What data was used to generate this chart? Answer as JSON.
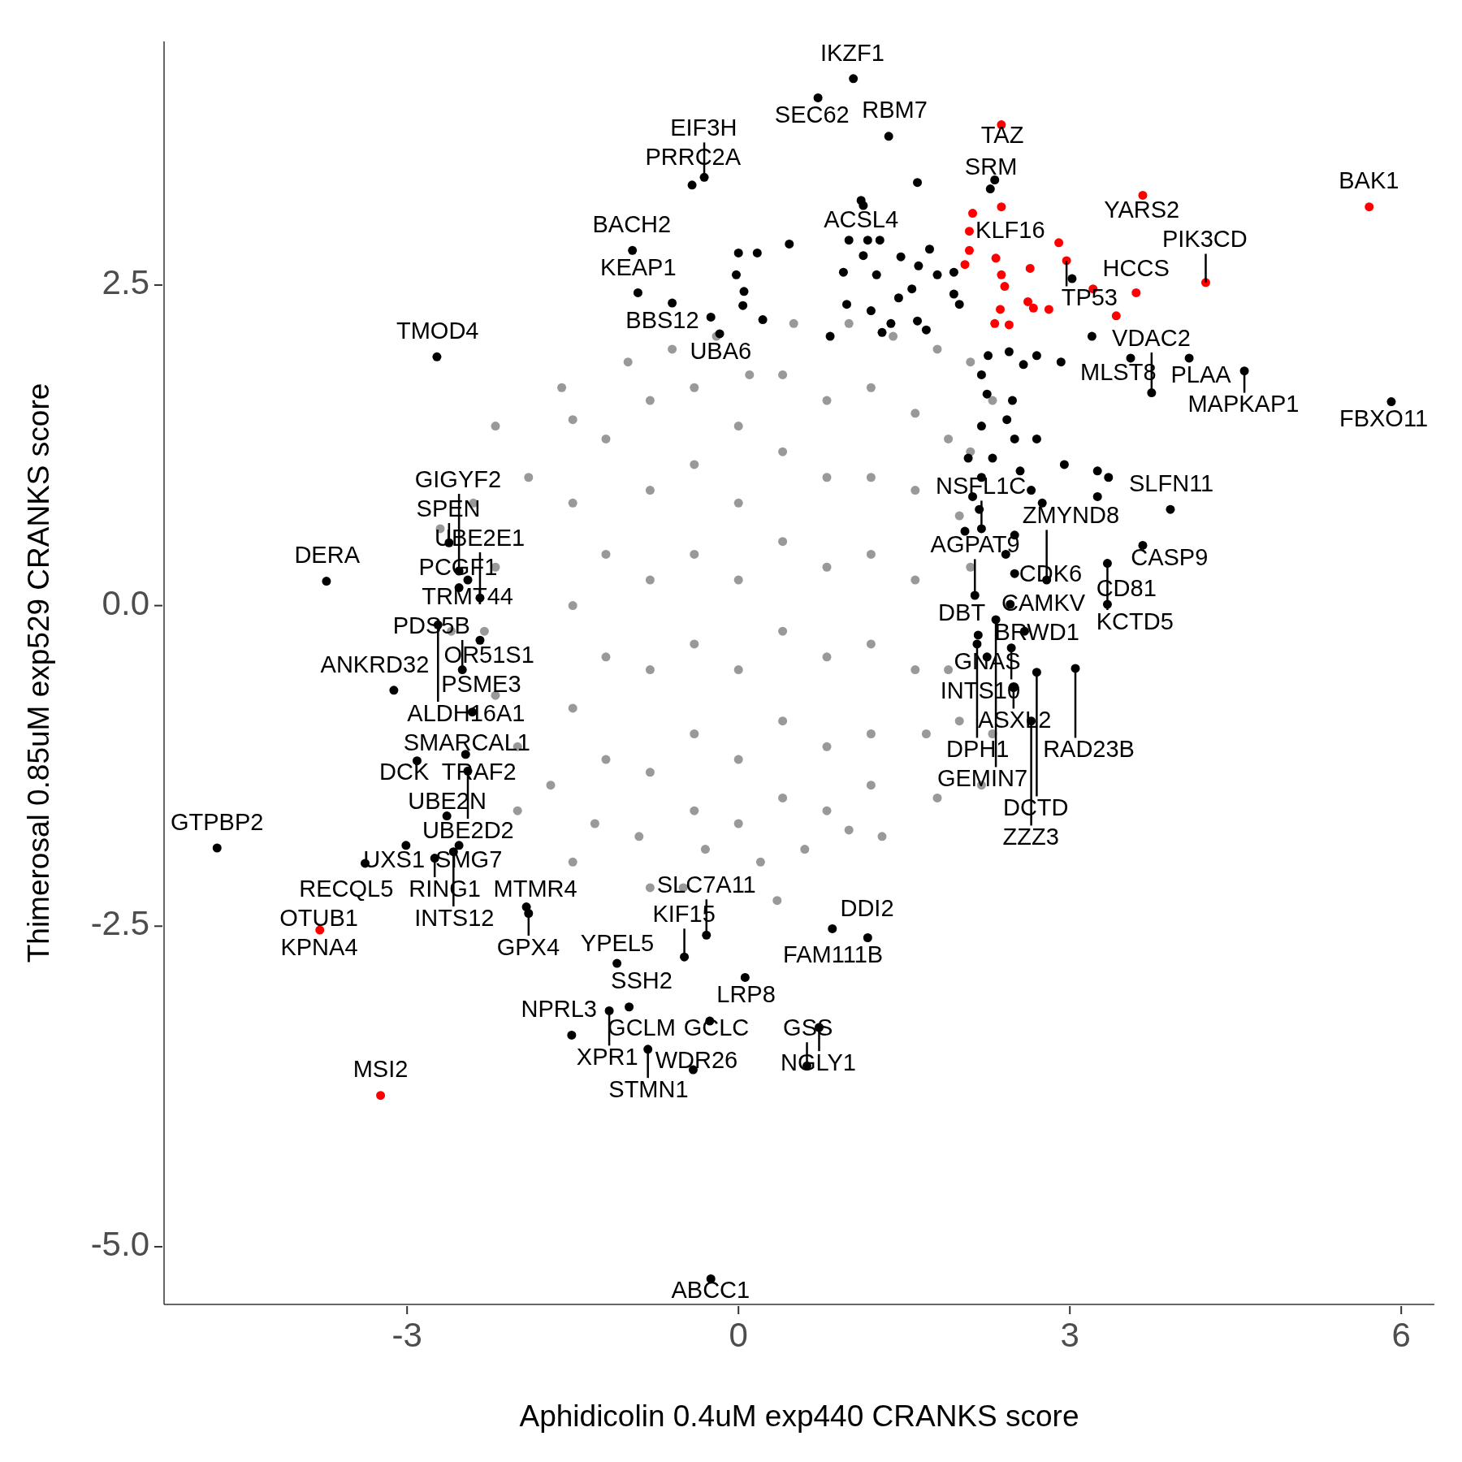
{
  "chart_data": {
    "type": "scatter",
    "xlabel": "Aphidicolin 0.4uM exp440 CRANKS score",
    "ylabel": "Thimerosal 0.85uM exp529 CRANKS score",
    "xlim": [
      -5.2,
      6.3
    ],
    "ylim": [
      -5.45,
      4.4
    ],
    "xticks": [
      -3,
      0,
      3,
      6
    ],
    "yticks": [
      {
        "value": 2.5,
        "label": "2.5"
      },
      {
        "value": 0,
        "label": "0.0"
      },
      {
        "value": -2.5,
        "label": "-2.5"
      },
      {
        "value": -5,
        "label": "-5.0"
      }
    ],
    "marker": "circle",
    "series": [
      {
        "color": "#999999",
        "x": [
          -2.2,
          -1.6,
          -1.5,
          -1.0,
          -0.6,
          -0.2,
          0.5,
          1.0,
          1.4,
          1.8,
          2.1,
          2.3,
          2.1,
          2.0,
          2.1,
          1.9,
          1.7,
          1.2,
          1.0,
          0.6,
          0.2,
          -0.3,
          -0.5,
          -0.9,
          -1.3,
          -1.7,
          -2.0,
          -2.2,
          -2.3,
          -2.2,
          -2.4,
          -1.9,
          -2.0,
          -1.5,
          1.3,
          2.2,
          -0.8,
          0.35,
          -2.6,
          -2.7,
          0.1,
          -1.5,
          -1.5,
          -1.5,
          -1.2,
          -1.2,
          -1.2,
          -1.2,
          -0.8,
          -0.8,
          -0.8,
          -0.8,
          -0.8,
          -0.4,
          -0.4,
          -0.4,
          -0.4,
          -0.4,
          -0.4,
          0,
          0,
          0,
          0,
          0,
          0,
          0.4,
          0.4,
          0.4,
          0.4,
          0.4,
          0.4,
          0.8,
          0.8,
          0.8,
          0.8,
          0.8,
          0.8,
          1.2,
          1.2,
          1.2,
          1.2,
          1.2,
          1.6,
          1.6,
          1.6,
          1.6,
          1.9,
          2.0,
          2.3,
          1.8
        ],
        "values": [
          1.4,
          1.7,
          1.45,
          1.9,
          2.0,
          2.1,
          2.2,
          2.2,
          2.1,
          2.0,
          1.9,
          1.6,
          1.2,
          0.7,
          0.3,
          -0.5,
          -1.0,
          -1.4,
          -1.75,
          -1.9,
          -2.0,
          -1.9,
          -2.2,
          -1.8,
          -1.7,
          -1.4,
          -1.1,
          -0.7,
          -0.2,
          0.3,
          0.8,
          1.0,
          -1.6,
          -2.0,
          -1.8,
          -1.4,
          -2.2,
          -2.3,
          -0.2,
          0.6,
          1.8,
          0.8,
          0,
          -0.8,
          1.3,
          0.4,
          -0.4,
          -1.2,
          1.6,
          0.9,
          0.2,
          -0.5,
          -1.3,
          1.7,
          1.1,
          0.4,
          -0.3,
          -1.0,
          -1.6,
          1.4,
          0.8,
          0.2,
          -0.5,
          -1.2,
          -1.7,
          1.8,
          1.2,
          0.5,
          -0.2,
          -0.9,
          -1.5,
          1.6,
          1.0,
          0.3,
          -0.4,
          -1.1,
          -1.6,
          1.7,
          1.0,
          0.4,
          -0.3,
          -1.0,
          1.5,
          0.9,
          0.2,
          -0.5,
          1.3,
          -0.9,
          -1.0,
          -1.5
        ]
      },
      {
        "color": "#000000",
        "x": [
          1.04,
          0.72,
          1.36,
          -0.42,
          -0.31,
          1.11,
          1.13,
          2.28,
          -0.96,
          -0.91,
          -0.6,
          3.55,
          4.08,
          -2.73,
          4.58,
          3.74,
          5.91,
          3.91,
          -2.62,
          2.79,
          -2.45,
          2.14,
          2.5,
          3.66,
          3.34,
          -3.73,
          -2.53,
          -2.34,
          2.46,
          3.34,
          2.33,
          2.17,
          -2.72,
          -2.5,
          -2.34,
          2.59,
          2.16,
          -3.12,
          -2.41,
          3.05,
          2.7,
          2.49,
          2.47,
          -2.91,
          -2.47,
          -2.45,
          2.65,
          -2.64,
          -4.72,
          -3.01,
          -2.53,
          -3.38,
          -0.49,
          -2.75,
          -1.92,
          -0.29,
          0.85,
          -1.9,
          -1.1,
          0.06,
          1.17,
          -1.17,
          -0.99,
          0.73,
          -1.51,
          -0.26,
          0.62,
          -0.82,
          -0.41,
          -0.25,
          0,
          0.17,
          -0.02,
          0.05,
          0.04,
          0.46,
          0.22,
          -0.25,
          -0.17,
          1.0,
          1.17,
          1.28,
          0.95,
          1.13,
          1.25,
          1.47,
          1.73,
          1.63,
          1.8,
          1.95,
          0.98,
          1.2,
          1.45,
          1.57,
          1.62,
          1.7,
          1.3,
          1.38,
          0.83,
          1.95,
          2.0,
          1.62,
          2.32,
          2.26,
          2.45,
          2.7,
          2.92,
          2.58,
          2.2,
          2.25,
          2.2,
          2.48,
          2.43,
          2.5,
          2.08,
          2.2,
          2.3,
          2.7,
          2.55,
          2.95,
          3.25,
          3.35,
          2.65,
          2.75,
          3.25,
          2.12,
          2.18,
          2.2,
          2.5,
          2.42,
          2.05,
          3.02,
          3.2,
          -2.53,
          2.25,
          -2.58
        ],
        "values": [
          4.11,
          3.96,
          3.66,
          3.28,
          3.34,
          3.16,
          3.12,
          3.25,
          2.77,
          2.44,
          2.36,
          1.93,
          1.93,
          1.94,
          1.83,
          1.66,
          1.59,
          0.75,
          0.49,
          0.2,
          0.2,
          0.08,
          0.25,
          0.47,
          0.33,
          0.19,
          0.14,
          0.06,
          0.01,
          0.01,
          -0.11,
          -0.23,
          -0.15,
          -0.5,
          -0.27,
          -0.2,
          -0.3,
          -0.66,
          -0.83,
          -0.49,
          -0.52,
          -0.64,
          -0.33,
          -1.21,
          -1.16,
          -1.29,
          -0.9,
          -1.64,
          -1.89,
          -1.87,
          -1.87,
          -2.01,
          -2.74,
          -1.97,
          -2.35,
          -2.57,
          -2.52,
          -2.4,
          -2.79,
          -2.9,
          -2.59,
          -3.16,
          -3.13,
          -3.29,
          -3.35,
          -3.24,
          -3.59,
          -3.46,
          -3.62,
          -5.25,
          2.75,
          2.75,
          2.58,
          2.45,
          2.34,
          2.82,
          2.23,
          2.25,
          2.12,
          2.85,
          2.85,
          2.85,
          2.6,
          2.73,
          2.58,
          2.72,
          2.78,
          2.65,
          2.58,
          2.6,
          2.35,
          2.3,
          2.4,
          2.47,
          2.22,
          2.15,
          2.13,
          2.2,
          2.1,
          2.43,
          2.35,
          3.3,
          3.32,
          1.95,
          1.98,
          1.95,
          1.9,
          1.88,
          1.8,
          1.65,
          1.4,
          1.6,
          1.45,
          1.3,
          1.15,
          1.0,
          1.15,
          1.3,
          1.05,
          1.1,
          1.05,
          1.0,
          0.9,
          0.8,
          0.85,
          0.85,
          0.75,
          0.6,
          0.55,
          0.4,
          0.58,
          2.55,
          2.1,
          0.27,
          -0.4,
          -1.92
        ]
      },
      {
        "color": "#ff0000",
        "x": [
          2.38,
          2.38,
          3.66,
          5.71,
          2.12,
          2.09,
          2.09,
          2.05,
          2.33,
          2.38,
          2.41,
          2.64,
          2.9,
          2.97,
          2.62,
          2.67,
          2.81,
          2.37,
          2.32,
          2.45,
          3.21,
          3.6,
          3.42,
          4.23,
          -3.79,
          -3.24
        ],
        "values": [
          3.75,
          3.11,
          3.2,
          3.11,
          3.06,
          2.92,
          2.77,
          2.66,
          2.71,
          2.58,
          2.49,
          2.63,
          2.83,
          2.69,
          2.37,
          2.32,
          2.31,
          2.31,
          2.2,
          2.19,
          2.47,
          2.44,
          2.26,
          2.52,
          -2.53,
          -3.82
        ]
      }
    ],
    "annotations": [
      {
        "text": "IKZF1",
        "x": 1.04,
        "y": 4.11
      },
      {
        "text": "SEC62",
        "x": 0.72,
        "y": 3.96
      },
      {
        "text": "RBM7",
        "x": 1.36,
        "y": 3.66
      },
      {
        "text": "TAZ",
        "x": 2.38,
        "y": 3.75
      },
      {
        "text": "EIF3H",
        "x": -0.31,
        "y": 3.34
      },
      {
        "text": "ACSL4",
        "x": 1.11,
        "y": 3.16
      },
      {
        "text": "SRM",
        "x": 2.28,
        "y": 3.25
      },
      {
        "text": "YARS2",
        "x": 3.66,
        "y": 3.2
      },
      {
        "text": "BAK1",
        "x": 5.71,
        "y": 3.11
      },
      {
        "text": "KLF16",
        "x": 2.38,
        "y": 3.11
      },
      {
        "text": "PRRC2A",
        "x": -0.42,
        "y": 3.28
      },
      {
        "text": "BACH2",
        "x": -0.96,
        "y": 2.77
      },
      {
        "text": "BBS12",
        "x": -0.6,
        "y": 2.36
      },
      {
        "text": "TP53",
        "x": 2.97,
        "y": 2.69
      },
      {
        "text": "PIK3CD",
        "x": 4.23,
        "y": 2.52
      },
      {
        "text": "HCCS",
        "x": 3.6,
        "y": 2.44
      },
      {
        "text": "KEAP1",
        "x": -0.91,
        "y": 2.44
      },
      {
        "text": "UBA6",
        "x": -0.17,
        "y": 2.12
      },
      {
        "text": "MLST8",
        "x": 3.55,
        "y": 1.93
      },
      {
        "text": "PLAA",
        "x": 4.08,
        "y": 1.93
      },
      {
        "text": "TMOD4",
        "x": -2.73,
        "y": 1.94
      },
      {
        "text": "MAPKAP1",
        "x": 4.58,
        "y": 1.83
      },
      {
        "text": "VDAC2",
        "x": 3.74,
        "y": 1.66
      },
      {
        "text": "FBXO11",
        "x": 5.91,
        "y": 1.59
      },
      {
        "text": "SLFN11",
        "x": 3.91,
        "y": 0.75
      },
      {
        "text": "SPEN",
        "x": -2.62,
        "y": 0.49
      },
      {
        "text": "ZMYND8",
        "x": 2.79,
        "y": 0.2
      },
      {
        "text": "CASP9",
        "x": 3.66,
        "y": 0.47
      },
      {
        "text": "GIGYF2",
        "x": -2.53,
        "y": 0.27
      },
      {
        "text": "TRMT44",
        "x": -2.45,
        "y": 0.2
      },
      {
        "text": "AGPAT9",
        "x": 2.14,
        "y": 0.08
      },
      {
        "text": "CDK6",
        "x": 2.5,
        "y": 0.25
      },
      {
        "text": "NSFL1C",
        "x": 2.2,
        "y": 0.6
      },
      {
        "text": "KCTD5",
        "x": 3.34,
        "y": 0.33
      },
      {
        "text": "DERA",
        "x": -3.73,
        "y": 0.19
      },
      {
        "text": "PCGF1",
        "x": -2.53,
        "y": 0.14
      },
      {
        "text": "UBE2E1",
        "x": -2.34,
        "y": 0.06
      },
      {
        "text": "BRWD1",
        "x": 2.46,
        "y": 0.01
      },
      {
        "text": "CD81",
        "x": 3.34,
        "y": 0.01
      },
      {
        "text": "GEMIN7",
        "x": 2.33,
        "y": -0.11
      },
      {
        "text": "DBT",
        "x": 2.17,
        "y": -0.23
      },
      {
        "text": "ALDH16A1",
        "x": -2.72,
        "y": -0.15
      },
      {
        "text": "PDS5B",
        "x": -2.5,
        "y": -0.5
      },
      {
        "text": "OR51S1",
        "x": -2.34,
        "y": -0.27
      },
      {
        "text": "CAMKV",
        "x": 2.59,
        "y": -0.2
      },
      {
        "text": "DPH1",
        "x": 2.16,
        "y": -0.3
      },
      {
        "text": "ANKRD32",
        "x": -3.12,
        "y": -0.66
      },
      {
        "text": "PSME3",
        "x": -2.41,
        "y": -0.83
      },
      {
        "text": "RAD23B",
        "x": 3.05,
        "y": -0.49
      },
      {
        "text": "DCTD",
        "x": 2.7,
        "y": -0.52
      },
      {
        "text": "UBE2D2",
        "x": -2.45,
        "y": -1.29
      },
      {
        "text": "GNAS",
        "x": 2.25,
        "y": -0.4
      },
      {
        "text": "ASXL2",
        "x": 2.49,
        "y": -0.64
      },
      {
        "text": "INTS10",
        "x": 2.47,
        "y": -0.33
      },
      {
        "text": "DCK",
        "x": -2.91,
        "y": -1.21
      },
      {
        "text": "TRAF2",
        "x": -2.47,
        "y": -1.16
      },
      {
        "text": "SMARCAL1",
        "x": -2.45,
        "y": -1.29
      },
      {
        "text": "ZZZ3",
        "x": 2.65,
        "y": -0.9
      },
      {
        "text": "UBE2N",
        "x": -2.64,
        "y": -1.64
      },
      {
        "text": "INTS12",
        "x": -2.58,
        "y": -1.92
      },
      {
        "text": "GTPBP2",
        "x": -4.72,
        "y": -1.89
      },
      {
        "text": "UXS1",
        "x": -3.01,
        "y": -1.87
      },
      {
        "text": "SMG7",
        "x": -2.53,
        "y": -1.87
      },
      {
        "text": "RECQL5",
        "x": -3.38,
        "y": -2.01
      },
      {
        "text": "KIF15",
        "x": -0.49,
        "y": -2.74
      },
      {
        "text": "RING1",
        "x": -2.75,
        "y": -1.97
      },
      {
        "text": "MTMR4",
        "x": -1.92,
        "y": -2.35
      },
      {
        "text": "KPNA4",
        "x": -3.79,
        "y": -2.53
      },
      {
        "text": "SLC7A11",
        "x": -0.29,
        "y": -2.57
      },
      {
        "text": "FAM111B",
        "x": 0.85,
        "y": -2.52
      },
      {
        "text": "OTUB1",
        "x": -3.79,
        "y": -2.53
      },
      {
        "text": "GPX4",
        "x": -1.9,
        "y": -2.4
      },
      {
        "text": "YPEL5",
        "x": -1.1,
        "y": -2.79
      },
      {
        "text": "LRP8",
        "x": 0.06,
        "y": -2.9
      },
      {
        "text": "DDI2",
        "x": 1.17,
        "y": -2.59
      },
      {
        "text": "XPR1",
        "x": -1.17,
        "y": -3.16
      },
      {
        "text": "SSH2",
        "x": -0.99,
        "y": -3.13
      },
      {
        "text": "NGLY1",
        "x": 0.73,
        "y": -3.29
      },
      {
        "text": "NPRL3",
        "x": -1.51,
        "y": -3.35
      },
      {
        "text": "GCLC",
        "x": -0.26,
        "y": -3.24
      },
      {
        "text": "GSS",
        "x": 0.62,
        "y": -3.59
      },
      {
        "text": "GCLM",
        "x": -0.82,
        "y": -3.46
      },
      {
        "text": "MSI2",
        "x": -3.24,
        "y": -3.82
      },
      {
        "text": "STMN1",
        "x": -0.82,
        "y": -3.46
      },
      {
        "text": "WDR26",
        "x": -0.41,
        "y": -3.62
      },
      {
        "text": "ABCC1",
        "x": -0.25,
        "y": -5.25
      }
    ]
  }
}
